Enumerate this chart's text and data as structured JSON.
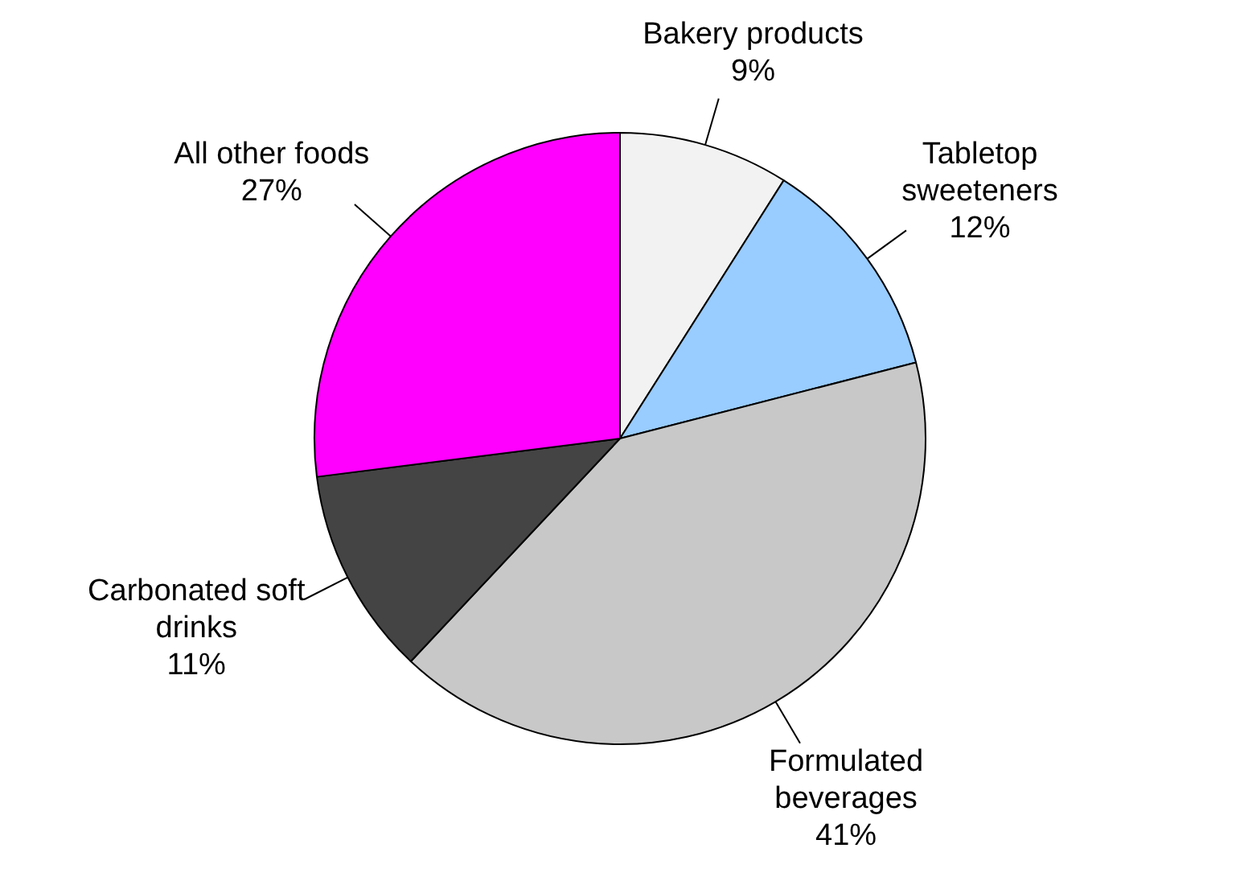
{
  "chart_data": {
    "type": "pie",
    "categories": [
      "Bakery products",
      "Tabletop sweeteners",
      "Formulated beverages",
      "Carbonated soft drinks",
      "All other foods"
    ],
    "values": [
      9,
      12,
      41,
      11,
      27
    ],
    "colors": [
      "#f2f2f2",
      "#99ccff",
      "#c8c8c8",
      "#444444",
      "#ff00ff"
    ],
    "value_labels": [
      "9%",
      "12%",
      "41%",
      "11%",
      "27%"
    ],
    "legend": false
  }
}
